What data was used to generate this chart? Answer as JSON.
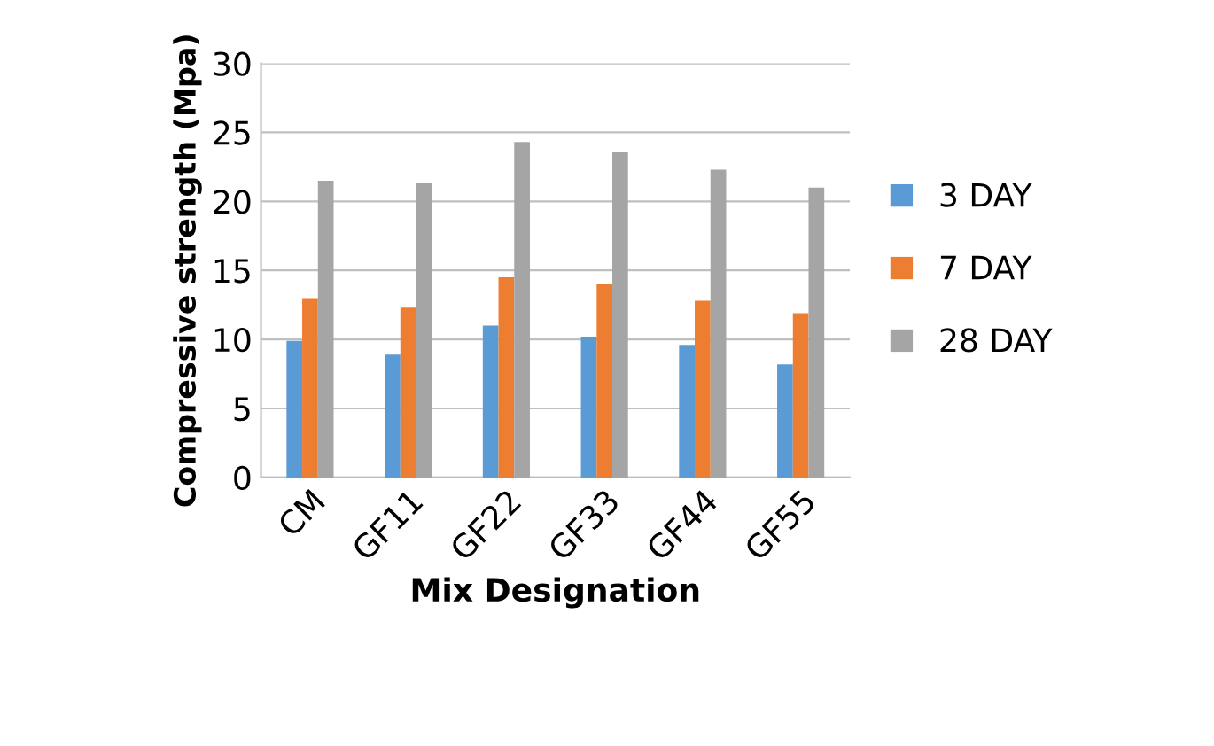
{
  "chart_data": {
    "type": "bar",
    "xlabel": "Mix Designation",
    "ylabel": "Compressive strength (Mpa)",
    "categories": [
      "CM",
      "GF11",
      "GF22",
      "GF33",
      "GF44",
      "GF55"
    ],
    "series": [
      {
        "name": "3 DAY",
        "color": "#5b9bd5",
        "values": [
          9.9,
          8.9,
          11.0,
          10.2,
          9.6,
          8.2
        ]
      },
      {
        "name": "7 DAY",
        "color": "#ed7d31",
        "values": [
          13.0,
          12.3,
          14.5,
          14.0,
          12.8,
          11.9
        ]
      },
      {
        "name": "28 DAY",
        "color": "#a5a5a5",
        "values": [
          21.5,
          21.3,
          24.3,
          23.6,
          22.3,
          21.0
        ]
      }
    ],
    "ylim": [
      0,
      30
    ],
    "yticks": [
      0,
      5,
      10,
      15,
      20,
      25,
      30
    ],
    "grid": "y",
    "legend": "right"
  }
}
